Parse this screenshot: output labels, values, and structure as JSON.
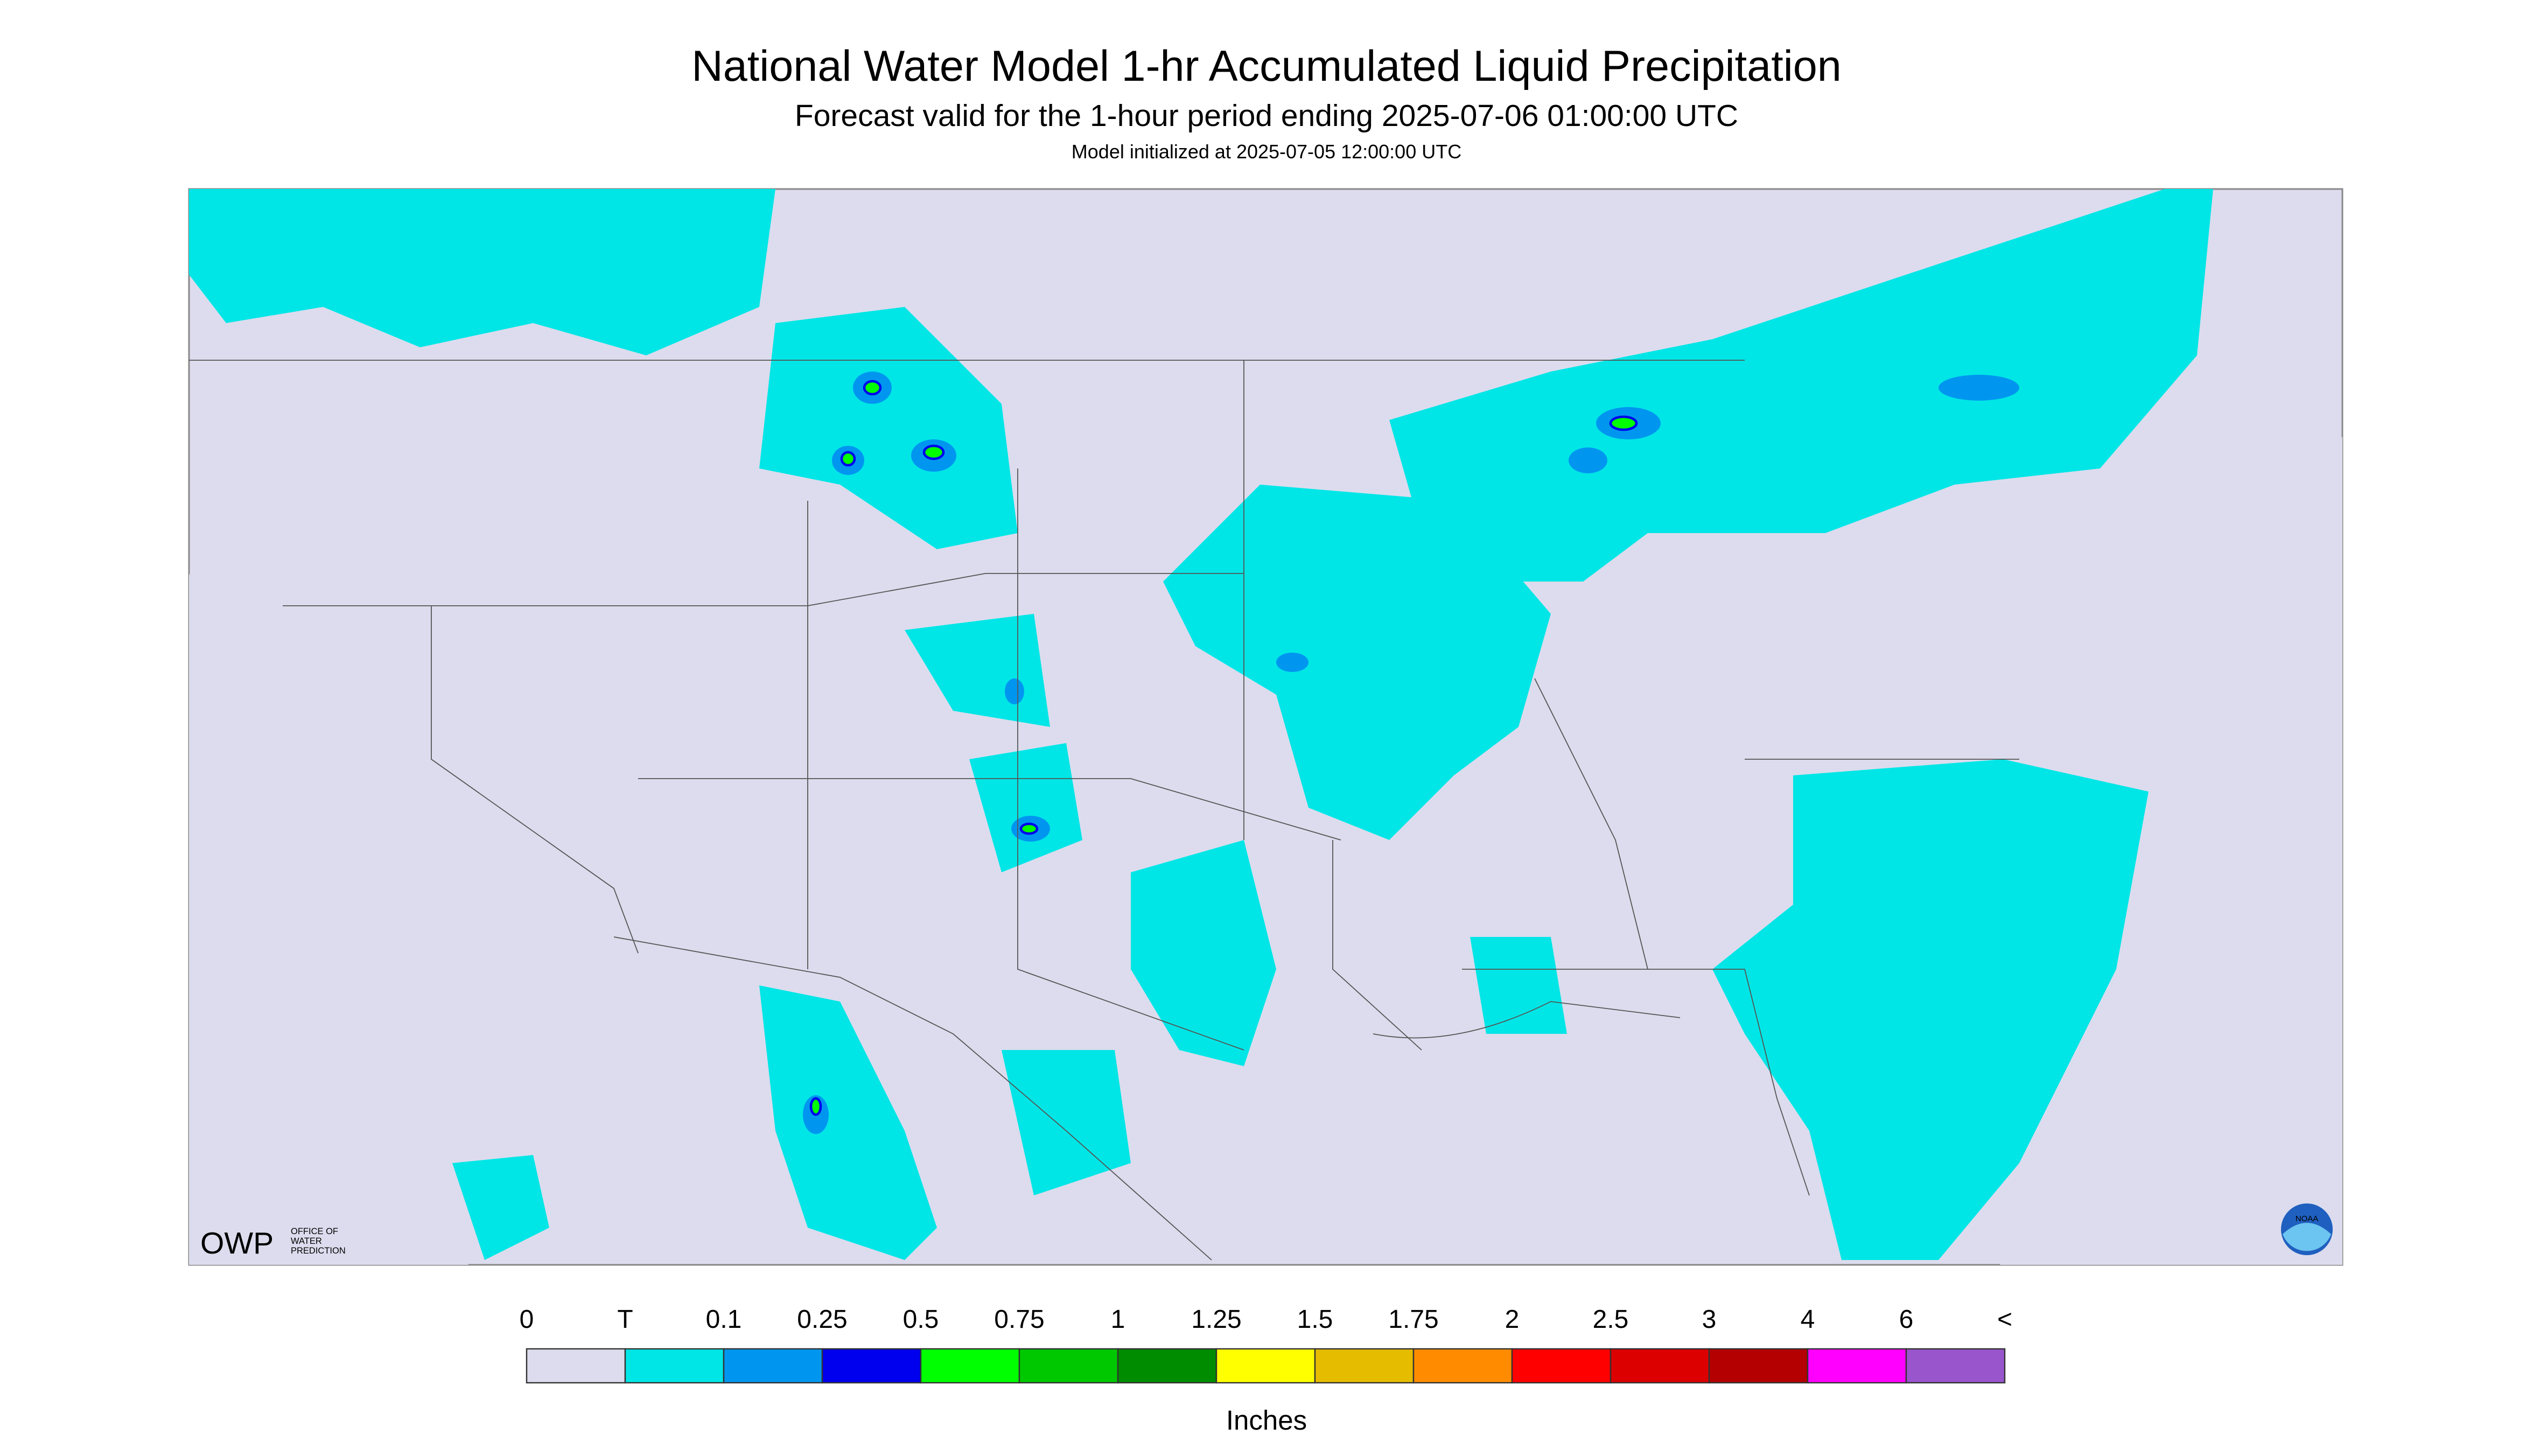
{
  "header": {
    "title": "National Water Model 1-hr Accumulated Liquid Precipitation",
    "subtitle": "Forecast valid for the 1-hour period ending 2025-07-06 01:00:00 UTC",
    "init": "Model initialized at 2025-07-05 12:00:00 UTC"
  },
  "logos": {
    "owp": "OWP",
    "owp_lines": [
      "OFFICE OF",
      "WATER",
      "PREDICTION"
    ],
    "noaa": "NOAA"
  },
  "legend": {
    "labels": [
      "0",
      "T",
      "0.1",
      "0.25",
      "0.5",
      "0.75",
      "1",
      "1.25",
      "1.5",
      "1.75",
      "2",
      "2.5",
      "3",
      "4",
      "6",
      "<"
    ],
    "colors": [
      "#dcdcee",
      "#00e6e6",
      "#0096f0",
      "#0000ee",
      "#00ff00",
      "#00c800",
      "#008c00",
      "#ffff00",
      "#e6bc00",
      "#ff8c00",
      "#ff0000",
      "#dc0000",
      "#b40000",
      "#ff00ff",
      "#9955cc"
    ],
    "unit": "Inches"
  }
}
